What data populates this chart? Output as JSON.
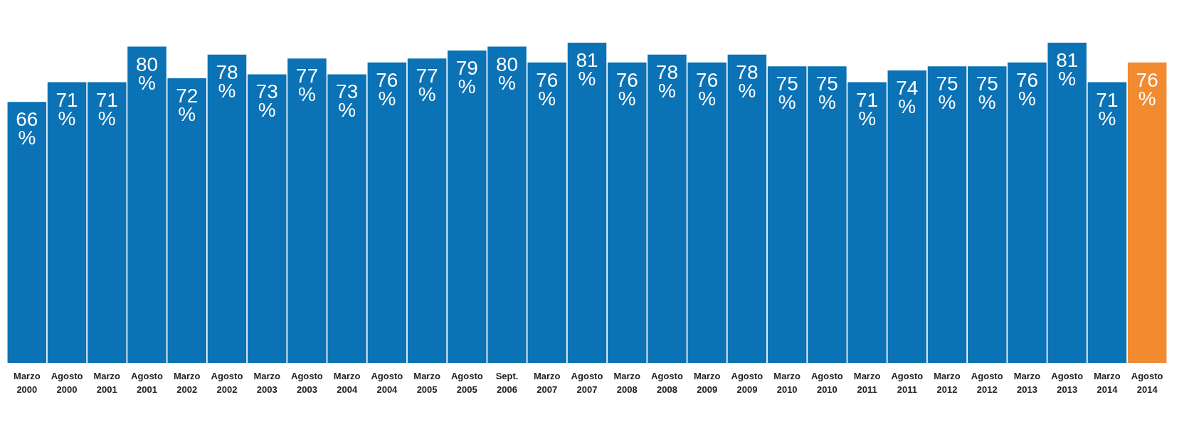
{
  "chart_data": {
    "type": "bar",
    "categories": [
      "Marzo 2000",
      "Agosto 2000",
      "Marzo 2001",
      "Agosto 2001",
      "Marzo 2002",
      "Agosto 2002",
      "Marzo 2003",
      "Agosto 2003",
      "Marzo 2004",
      "Agosto 2004",
      "Marzo 2005",
      "Agosto 2005",
      "Sept. 2006",
      "Marzo 2007",
      "Agosto 2007",
      "Marzo 2008",
      "Agosto 2008",
      "Marzo 2009",
      "Agosto 2009",
      "Marzo 2010",
      "Agosto 2010",
      "Marzo 2011",
      "Agosto 2011",
      "Marzo 2012",
      "Agosto 2012",
      "Marzo 2013",
      "Agosto 2013",
      "Marzo 2014",
      "Agosto 2014"
    ],
    "values": [
      66,
      71,
      71,
      80,
      72,
      78,
      73,
      77,
      73,
      76,
      77,
      79,
      80,
      76,
      81,
      76,
      78,
      76,
      78,
      75,
      75,
      71,
      74,
      75,
      75,
      76,
      81,
      71,
      76
    ],
    "value_labels": [
      "66 %",
      "71 %",
      "71 %",
      "80 %",
      "72 %",
      "78 %",
      "73 %",
      "77 %",
      "73 %",
      "76 %",
      "77 %",
      "79 %",
      "80 %",
      "76 %",
      "81 %",
      "76 %",
      "78 %",
      "76 %",
      "78 %",
      "75 %",
      "75 %",
      "71 %",
      "74 %",
      "75 %",
      "75 %",
      "76 %",
      "81 %",
      "71 %",
      "76 %"
    ],
    "colors": [
      "#0a72b5",
      "#0a72b5",
      "#0a72b5",
      "#0a72b5",
      "#0a72b5",
      "#0a72b5",
      "#0a72b5",
      "#0a72b5",
      "#0a72b5",
      "#0a72b5",
      "#0a72b5",
      "#0a72b5",
      "#0a72b5",
      "#0a72b5",
      "#0a72b5",
      "#0a72b5",
      "#0a72b5",
      "#0a72b5",
      "#0a72b5",
      "#0a72b5",
      "#0a72b5",
      "#0a72b5",
      "#0a72b5",
      "#0a72b5",
      "#0a72b5",
      "#0a72b5",
      "#0a72b5",
      "#0a72b5",
      "#f28a30"
    ]
  }
}
